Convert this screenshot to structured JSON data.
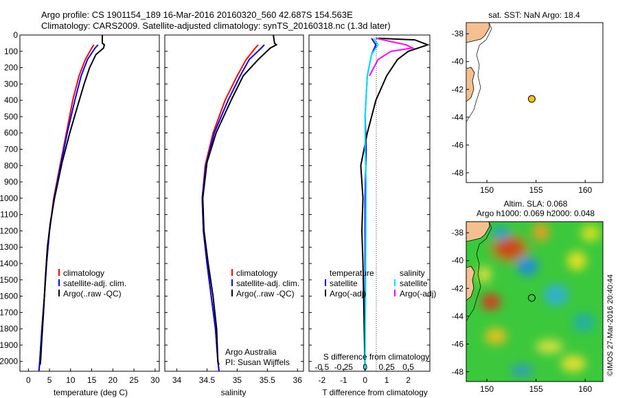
{
  "header": {
    "line1": "Argo profile: CS 1901154_189 16-Mar-2016 20160320_560 42.687S 154.563E",
    "line2": "Climatology: CARS2009. Satellite-adjusted climatology: synTS_20160318.nc (1.3d later)"
  },
  "colors": {
    "climatology": "#ff0000",
    "satellite": "#0000ff",
    "argo": "#000000",
    "sat_cyan": "#00e5ff",
    "argo_magenta": "#ff00ff",
    "land": "#f5c090",
    "marker": "#f0c020"
  },
  "chart_data": [
    {
      "type": "line",
      "name": "temperature",
      "xlabel": "temperature (deg C)",
      "xlim": [
        -2,
        31
      ],
      "xticks": [
        0,
        5,
        10,
        15,
        20,
        25,
        30
      ],
      "ylim": [
        2060,
        0
      ],
      "yticks": [
        0,
        100,
        200,
        300,
        400,
        500,
        600,
        700,
        800,
        900,
        1000,
        1100,
        1200,
        1300,
        1400,
        1500,
        1600,
        1700,
        1800,
        1900,
        2000
      ],
      "legend": [
        "climatology",
        "satellite-adj. clim.",
        "Argo(..raw -QC)"
      ],
      "series": [
        {
          "name": "climatology",
          "color": "#ff0000",
          "points": [
            [
              15.5,
              60
            ],
            [
              15,
              80
            ],
            [
              13.5,
              150
            ],
            [
              12,
              250
            ],
            [
              10.5,
              400
            ],
            [
              9,
              600
            ],
            [
              7.5,
              800
            ],
            [
              6,
              1000
            ],
            [
              5,
              1200
            ],
            [
              4.3,
              1400
            ],
            [
              3.8,
              1600
            ],
            [
              3.2,
              1800
            ],
            [
              2.7,
              2000
            ],
            [
              2.5,
              2060
            ]
          ]
        },
        {
          "name": "satellite-adj. clim.",
          "color": "#0000ff",
          "points": [
            [
              16.5,
              60
            ],
            [
              15.8,
              80
            ],
            [
              14,
              150
            ],
            [
              12.5,
              250
            ],
            [
              11,
              400
            ],
            [
              9.2,
              600
            ],
            [
              7.6,
              800
            ],
            [
              6.1,
              1000
            ],
            [
              5,
              1200
            ],
            [
              4.3,
              1400
            ],
            [
              3.8,
              1600
            ],
            [
              3.2,
              1800
            ],
            [
              2.7,
              2000
            ],
            [
              2.5,
              2060
            ]
          ]
        },
        {
          "name": "Argo(..raw -QC)",
          "color": "#000000",
          "points": [
            [
              17.5,
              0
            ],
            [
              17.5,
              50
            ],
            [
              18,
              60
            ],
            [
              17.8,
              80
            ],
            [
              16,
              120
            ],
            [
              14.5,
              200
            ],
            [
              13.2,
              300
            ],
            [
              11.5,
              450
            ],
            [
              9.8,
              600
            ],
            [
              8,
              780
            ],
            [
              6.2,
              1000
            ],
            [
              5.2,
              1150
            ],
            [
              4.5,
              1300
            ],
            [
              4,
              1500
            ],
            [
              3.6,
              1700
            ],
            [
              3.1,
              1900
            ],
            [
              2.9,
              2000
            ],
            [
              2.8,
              2020
            ]
          ]
        }
      ]
    },
    {
      "type": "line",
      "name": "salinity",
      "xlabel": "salinity",
      "xlim": [
        33.8,
        36.1
      ],
      "xticks": [
        34,
        34.5,
        35,
        35.5,
        36
      ],
      "ylim": [
        2060,
        0
      ],
      "legend": [
        "climatology",
        "satellite-adj. clim.",
        "Argo(..raw -QC)"
      ],
      "annotation": [
        "Argo Australia",
        "PI: Susan Wijffels"
      ],
      "series": [
        {
          "name": "climatology",
          "color": "#ff0000",
          "points": [
            [
              35.35,
              60
            ],
            [
              35.3,
              80
            ],
            [
              35.15,
              150
            ],
            [
              35,
              250
            ],
            [
              34.8,
              400
            ],
            [
              34.6,
              600
            ],
            [
              34.47,
              800
            ],
            [
              34.42,
              1000
            ],
            [
              34.44,
              1200
            ],
            [
              34.5,
              1400
            ],
            [
              34.57,
              1600
            ],
            [
              34.64,
              1800
            ],
            [
              34.68,
              2000
            ],
            [
              34.7,
              2060
            ]
          ]
        },
        {
          "name": "satellite-adj. clim.",
          "color": "#0000ff",
          "points": [
            [
              35.45,
              60
            ],
            [
              35.4,
              80
            ],
            [
              35.2,
              150
            ],
            [
              35.05,
              250
            ],
            [
              34.85,
              400
            ],
            [
              34.62,
              600
            ],
            [
              34.48,
              800
            ],
            [
              34.42,
              1000
            ],
            [
              34.44,
              1200
            ],
            [
              34.5,
              1400
            ],
            [
              34.57,
              1600
            ],
            [
              34.64,
              1800
            ],
            [
              34.68,
              2000
            ],
            [
              34.7,
              2060
            ]
          ]
        },
        {
          "name": "Argo(..raw -QC)",
          "color": "#000000",
          "points": [
            [
              35.6,
              0
            ],
            [
              35.62,
              50
            ],
            [
              35.65,
              60
            ],
            [
              35.55,
              80
            ],
            [
              35.35,
              150
            ],
            [
              35.1,
              250
            ],
            [
              34.9,
              400
            ],
            [
              34.65,
              600
            ],
            [
              34.5,
              780
            ],
            [
              34.43,
              1000
            ],
            [
              34.45,
              1200
            ],
            [
              34.52,
              1400
            ],
            [
              34.6,
              1600
            ],
            [
              34.66,
              1800
            ],
            [
              34.68,
              2000
            ],
            [
              34.7,
              2020
            ]
          ]
        }
      ]
    },
    {
      "type": "line",
      "name": "differences",
      "xlabel": "T difference from climatology",
      "xlabel_top": "S difference from climatology",
      "xlim": [
        -2.6,
        3
      ],
      "xticks": [
        -2,
        -1,
        0,
        1,
        2
      ],
      "xticks_top": [
        "-0.5",
        "-0.25",
        "0",
        "0.25",
        "0.5"
      ],
      "xticks_top_pos": [
        -2,
        -1,
        0,
        1,
        2
      ],
      "ylim": [
        2060,
        0
      ],
      "legend_temperature": [
        "temperature",
        "satellite",
        "Argo(-adj)"
      ],
      "legend_salinity": [
        "salinity",
        "satellite",
        "Argo(-adj)"
      ],
      "series": [
        {
          "name": "temperature satellite",
          "color": "#0000ff",
          "points": [
            [
              0.3,
              20
            ],
            [
              0.5,
              60
            ],
            [
              0.3,
              120
            ],
            [
              0.1,
              250
            ],
            [
              0,
              500
            ],
            [
              0.05,
              700
            ],
            [
              0,
              1000
            ],
            [
              0,
              2060
            ]
          ]
        },
        {
          "name": "temperature Argo(-adj)",
          "color": "#000000",
          "points": [
            [
              0.6,
              20
            ],
            [
              2.3,
              30
            ],
            [
              2.9,
              60
            ],
            [
              2,
              100
            ],
            [
              1.5,
              150
            ],
            [
              1,
              250
            ],
            [
              0.5,
              400
            ],
            [
              0.1,
              600
            ],
            [
              -0.2,
              800
            ],
            [
              -0.1,
              1000
            ],
            [
              -0.15,
              1200
            ],
            [
              -0.1,
              1400
            ],
            [
              0,
              2060
            ]
          ]
        },
        {
          "name": "salinity satellite",
          "color": "#00e5ff",
          "points": [
            [
              0.4,
              20
            ],
            [
              0.6,
              60
            ],
            [
              0.3,
              120
            ],
            [
              0.1,
              250
            ],
            [
              0,
              500
            ],
            [
              0,
              700
            ],
            [
              0.05,
              900
            ],
            [
              0,
              2060
            ]
          ]
        },
        {
          "name": "salinity Argo(-adj)",
          "color": "#ff00ff",
          "points": [
            [
              0.5,
              20
            ],
            [
              1.9,
              60
            ],
            [
              2.2,
              80
            ],
            [
              1.2,
              100
            ],
            [
              0.6,
              150
            ],
            [
              0.2,
              250
            ]
          ]
        }
      ]
    },
    {
      "type": "scatter",
      "name": "location map",
      "title": "sat. SST: NaN Argo: 18.4",
      "xlim": [
        147.9,
        161.8
      ],
      "ylim": [
        -48.7,
        -37.2
      ],
      "xticks": [
        150,
        155,
        160
      ],
      "yticks": [
        -38,
        -40,
        -42,
        -44,
        -46,
        -48
      ],
      "points": [
        {
          "x": 154.563,
          "y": -42.687
        }
      ]
    },
    {
      "type": "heatmap",
      "name": "SLA map",
      "title": [
        "Altim. SLA: 0.068",
        "Argo h1000: 0.069 h2000: 0.048"
      ],
      "xlim": [
        147.9,
        161.8
      ],
      "ylim": [
        -48.7,
        -37.2
      ],
      "xticks": [
        150,
        155,
        160
      ],
      "yticks": [
        -38,
        -40,
        -42,
        -44,
        -46,
        -48
      ],
      "points": [
        {
          "x": 154.563,
          "y": -42.687
        }
      ]
    }
  ],
  "timestamp": "©IMOS 27-Mar-2016 20:40:44"
}
